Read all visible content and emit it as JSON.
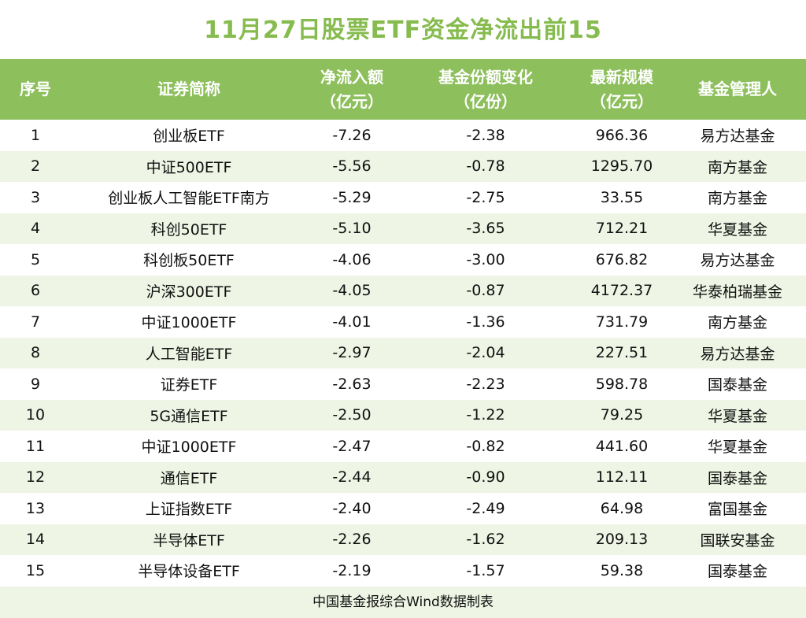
{
  "title": "11月27日股票ETF资金净流出前15",
  "table": {
    "header": [
      [
        "序号"
      ],
      [
        "证券简称"
      ],
      [
        "净流入额",
        "（亿元）"
      ],
      [
        "基金份额变化",
        "（亿份）"
      ],
      [
        "最新规模",
        "（亿元）"
      ],
      [
        "基金管理人"
      ]
    ],
    "rows": [
      [
        "1",
        "创业板ETF",
        "-7.26",
        "-2.38",
        "966.36",
        "易方达基金"
      ],
      [
        "2",
        "中证500ETF",
        "-5.56",
        "-0.78",
        "1295.70",
        "南方基金"
      ],
      [
        "3",
        "创业板人工智能ETF南方",
        "-5.29",
        "-2.75",
        "33.55",
        "南方基金"
      ],
      [
        "4",
        "科创50ETF",
        "-5.10",
        "-3.65",
        "712.21",
        "华夏基金"
      ],
      [
        "5",
        "科创板50ETF",
        "-4.06",
        "-3.00",
        "676.82",
        "易方达基金"
      ],
      [
        "6",
        "沪深300ETF",
        "-4.05",
        "-0.87",
        "4172.37",
        "华泰柏瑞基金"
      ],
      [
        "7",
        "中证1000ETF",
        "-4.01",
        "-1.36",
        "731.79",
        "南方基金"
      ],
      [
        "8",
        "人工智能ETF",
        "-2.97",
        "-2.04",
        "227.51",
        "易方达基金"
      ],
      [
        "9",
        "证券ETF",
        "-2.63",
        "-2.23",
        "598.78",
        "国泰基金"
      ],
      [
        "10",
        "5G通信ETF",
        "-2.50",
        "-1.22",
        "79.25",
        "华夏基金"
      ],
      [
        "11",
        "中证1000ETF",
        "-2.47",
        "-0.82",
        "441.60",
        "华夏基金"
      ],
      [
        "12",
        "通信ETF",
        "-2.44",
        "-0.90",
        "112.11",
        "国泰基金"
      ],
      [
        "13",
        "上证指数ETF",
        "-2.40",
        "-2.49",
        "64.98",
        "富国基金"
      ],
      [
        "14",
        "半导体ETF",
        "-2.26",
        "-1.62",
        "209.13",
        "国联安基金"
      ],
      [
        "15",
        "半导体设备ETF",
        "-2.19",
        "-1.57",
        "59.38",
        "国泰基金"
      ]
    ]
  },
  "footer": "中国基金报综合Wind数据制表"
}
